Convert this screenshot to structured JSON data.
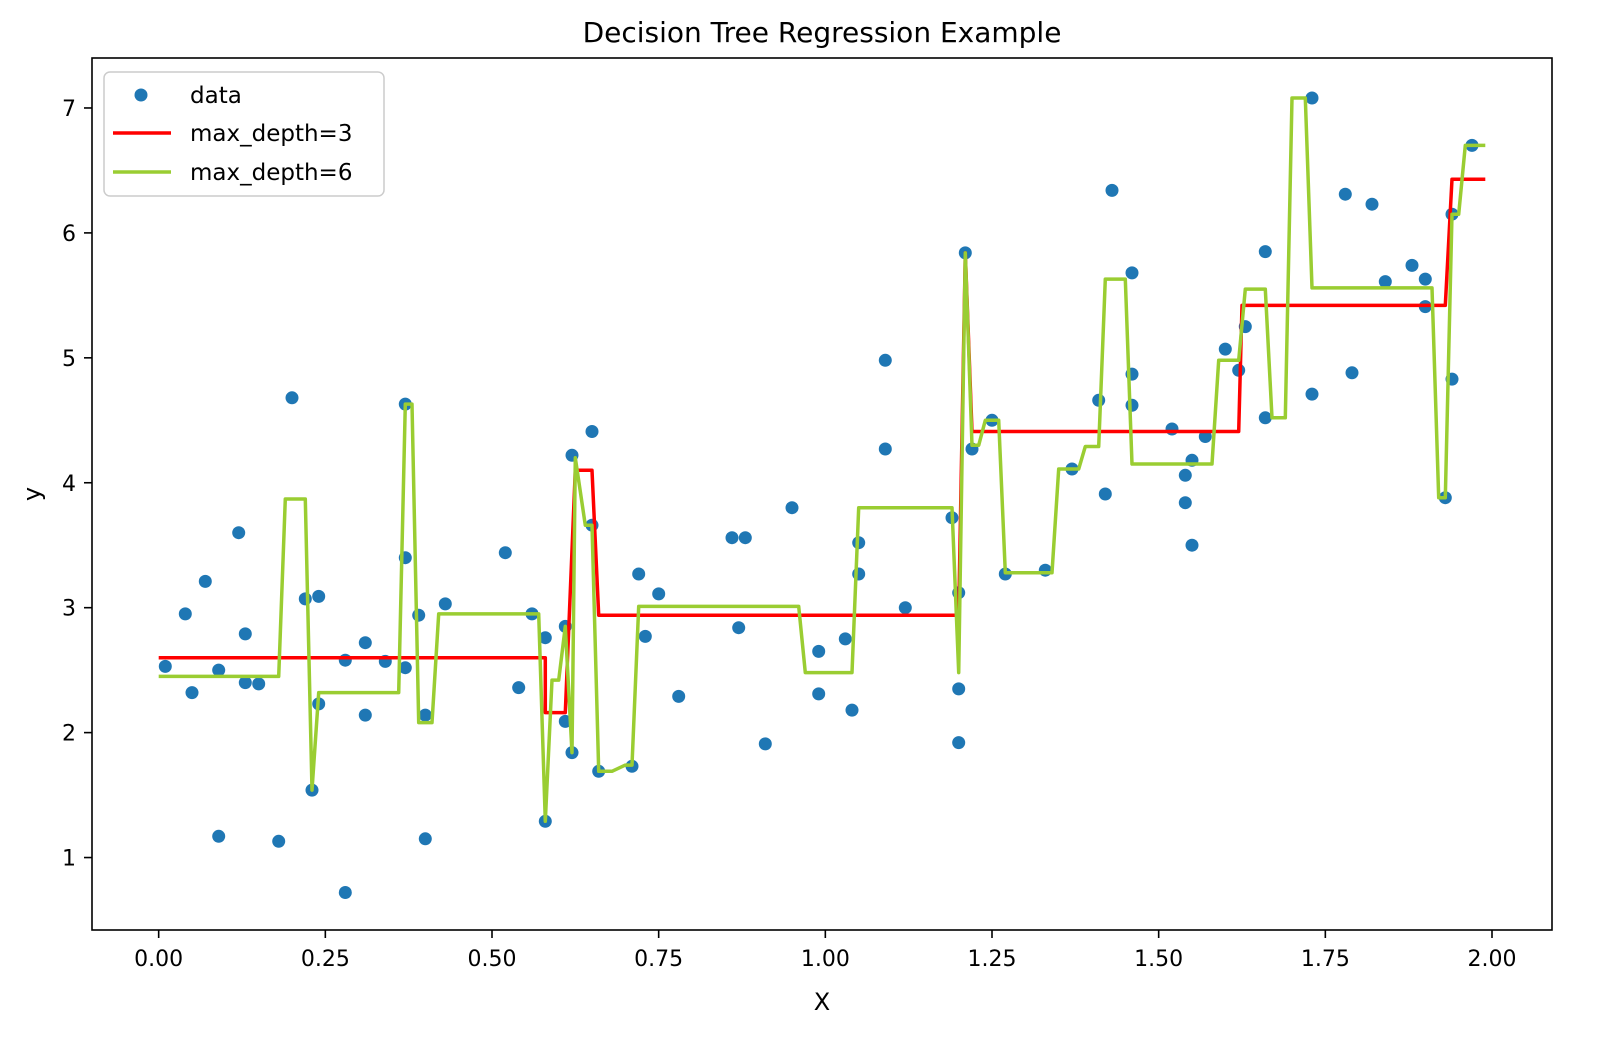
{
  "chart_data": {
    "type": "line",
    "title": "Decision Tree Regression Example",
    "xlabel": "X",
    "ylabel": "y",
    "xlim": [
      -0.1,
      2.09
    ],
    "ylim": [
      0.42,
      7.4
    ],
    "xticks": [
      0.0,
      0.25,
      0.5,
      0.75,
      1.0,
      1.25,
      1.5,
      1.75,
      2.0
    ],
    "xtick_labels": [
      "0.00",
      "0.25",
      "0.50",
      "0.75",
      "1.00",
      "1.25",
      "1.50",
      "1.75",
      "2.00"
    ],
    "yticks": [
      1,
      2,
      3,
      4,
      5,
      6,
      7
    ],
    "ytick_labels": [
      "1",
      "2",
      "3",
      "4",
      "5",
      "6",
      "7"
    ],
    "grid": false,
    "legend_position": "upper-left",
    "series": [
      {
        "name": "data",
        "kind": "scatter",
        "color": "#1f77b4",
        "points": [
          [
            0.01,
            2.53
          ],
          [
            0.04,
            2.95
          ],
          [
            0.05,
            2.32
          ],
          [
            0.07,
            3.21
          ],
          [
            0.09,
            1.17
          ],
          [
            0.09,
            2.5
          ],
          [
            0.12,
            3.6
          ],
          [
            0.13,
            2.79
          ],
          [
            0.13,
            2.4
          ],
          [
            0.15,
            2.39
          ],
          [
            0.18,
            1.13
          ],
          [
            0.2,
            4.68
          ],
          [
            0.22,
            3.07
          ],
          [
            0.23,
            1.54
          ],
          [
            0.24,
            3.09
          ],
          [
            0.24,
            2.23
          ],
          [
            0.28,
            2.58
          ],
          [
            0.28,
            0.72
          ],
          [
            0.31,
            2.72
          ],
          [
            0.31,
            2.14
          ],
          [
            0.34,
            2.57
          ],
          [
            0.37,
            2.52
          ],
          [
            0.37,
            3.4
          ],
          [
            0.37,
            4.63
          ],
          [
            0.39,
            2.94
          ],
          [
            0.4,
            1.15
          ],
          [
            0.4,
            2.14
          ],
          [
            0.43,
            3.03
          ],
          [
            0.52,
            3.44
          ],
          [
            0.54,
            2.36
          ],
          [
            0.56,
            2.95
          ],
          [
            0.58,
            1.29
          ],
          [
            0.58,
            2.76
          ],
          [
            0.61,
            2.85
          ],
          [
            0.61,
            2.09
          ],
          [
            0.62,
            1.84
          ],
          [
            0.62,
            4.22
          ],
          [
            0.65,
            3.66
          ],
          [
            0.65,
            4.41
          ],
          [
            0.66,
            1.69
          ],
          [
            0.71,
            1.73
          ],
          [
            0.72,
            3.27
          ],
          [
            0.73,
            2.77
          ],
          [
            0.75,
            3.11
          ],
          [
            0.78,
            2.29
          ],
          [
            0.86,
            3.56
          ],
          [
            0.87,
            2.84
          ],
          [
            0.88,
            3.56
          ],
          [
            0.91,
            1.91
          ],
          [
            0.95,
            3.8
          ],
          [
            0.99,
            2.65
          ],
          [
            0.99,
            2.31
          ],
          [
            1.03,
            2.75
          ],
          [
            1.04,
            2.18
          ],
          [
            1.05,
            3.52
          ],
          [
            1.05,
            3.27
          ],
          [
            1.09,
            4.98
          ],
          [
            1.09,
            4.27
          ],
          [
            1.12,
            3.0
          ],
          [
            1.19,
            3.72
          ],
          [
            1.2,
            2.35
          ],
          [
            1.2,
            1.92
          ],
          [
            1.2,
            3.12
          ],
          [
            1.21,
            5.84
          ],
          [
            1.22,
            4.27
          ],
          [
            1.25,
            4.5
          ],
          [
            1.27,
            3.27
          ],
          [
            1.33,
            3.3
          ],
          [
            1.37,
            4.11
          ],
          [
            1.41,
            4.66
          ],
          [
            1.42,
            3.91
          ],
          [
            1.43,
            6.34
          ],
          [
            1.46,
            4.87
          ],
          [
            1.46,
            5.68
          ],
          [
            1.46,
            4.62
          ],
          [
            1.52,
            4.43
          ],
          [
            1.54,
            4.06
          ],
          [
            1.54,
            3.84
          ],
          [
            1.55,
            4.18
          ],
          [
            1.55,
            3.5
          ],
          [
            1.57,
            4.37
          ],
          [
            1.6,
            5.07
          ],
          [
            1.62,
            4.9
          ],
          [
            1.63,
            5.25
          ],
          [
            1.66,
            5.85
          ],
          [
            1.66,
            4.52
          ],
          [
            1.73,
            7.08
          ],
          [
            1.73,
            4.71
          ],
          [
            1.78,
            6.31
          ],
          [
            1.79,
            4.88
          ],
          [
            1.82,
            6.23
          ],
          [
            1.84,
            5.61
          ],
          [
            1.88,
            5.74
          ],
          [
            1.9,
            5.63
          ],
          [
            1.9,
            5.41
          ],
          [
            1.93,
            3.88
          ],
          [
            1.94,
            6.15
          ],
          [
            1.94,
            4.83
          ],
          [
            1.97,
            6.7
          ]
        ]
      },
      {
        "name": "max_depth=3",
        "kind": "line",
        "color": "#ff0000",
        "points": [
          [
            0.0,
            2.6
          ],
          [
            0.58,
            2.6
          ],
          [
            0.58,
            2.16
          ],
          [
            0.61,
            2.16
          ],
          [
            0.625,
            4.1
          ],
          [
            0.65,
            4.1
          ],
          [
            0.66,
            2.94
          ],
          [
            1.19,
            2.94
          ],
          [
            1.2,
            2.94
          ],
          [
            1.21,
            5.84
          ],
          [
            1.22,
            4.41
          ],
          [
            1.62,
            4.41
          ],
          [
            1.625,
            5.42
          ],
          [
            1.93,
            5.42
          ],
          [
            1.94,
            6.43
          ],
          [
            1.99,
            6.43
          ]
        ]
      },
      {
        "name": "max_depth=6",
        "kind": "line",
        "color": "#9acd32",
        "points": [
          [
            0.0,
            2.45
          ],
          [
            0.18,
            2.45
          ],
          [
            0.19,
            3.87
          ],
          [
            0.22,
            3.87
          ],
          [
            0.23,
            1.54
          ],
          [
            0.24,
            2.32
          ],
          [
            0.36,
            2.32
          ],
          [
            0.37,
            4.63
          ],
          [
            0.38,
            4.63
          ],
          [
            0.39,
            2.08
          ],
          [
            0.41,
            2.08
          ],
          [
            0.42,
            2.95
          ],
          [
            0.56,
            2.95
          ],
          [
            0.57,
            2.95
          ],
          [
            0.58,
            1.29
          ],
          [
            0.59,
            2.42
          ],
          [
            0.6,
            2.42
          ],
          [
            0.61,
            2.85
          ],
          [
            0.62,
            1.84
          ],
          [
            0.625,
            4.2
          ],
          [
            0.64,
            3.66
          ],
          [
            0.65,
            3.66
          ],
          [
            0.66,
            1.69
          ],
          [
            0.68,
            1.69
          ],
          [
            0.7,
            1.74
          ],
          [
            0.71,
            1.74
          ],
          [
            0.72,
            3.01
          ],
          [
            0.96,
            3.01
          ],
          [
            0.97,
            2.48
          ],
          [
            1.04,
            2.48
          ],
          [
            1.05,
            3.8
          ],
          [
            1.19,
            3.8
          ],
          [
            1.2,
            2.48
          ],
          [
            1.21,
            5.84
          ],
          [
            1.22,
            4.3
          ],
          [
            1.23,
            4.3
          ],
          [
            1.24,
            4.5
          ],
          [
            1.26,
            4.5
          ],
          [
            1.27,
            3.28
          ],
          [
            1.34,
            3.28
          ],
          [
            1.35,
            4.11
          ],
          [
            1.38,
            4.11
          ],
          [
            1.39,
            4.29
          ],
          [
            1.41,
            4.29
          ],
          [
            1.42,
            5.63
          ],
          [
            1.45,
            5.63
          ],
          [
            1.46,
            4.15
          ],
          [
            1.58,
            4.15
          ],
          [
            1.59,
            4.98
          ],
          [
            1.62,
            4.98
          ],
          [
            1.63,
            5.55
          ],
          [
            1.66,
            5.55
          ],
          [
            1.67,
            4.52
          ],
          [
            1.69,
            4.52
          ],
          [
            1.7,
            7.08
          ],
          [
            1.72,
            7.08
          ],
          [
            1.73,
            5.56
          ],
          [
            1.9,
            5.56
          ],
          [
            1.91,
            5.56
          ],
          [
            1.92,
            3.88
          ],
          [
            1.93,
            3.88
          ],
          [
            1.94,
            6.15
          ],
          [
            1.95,
            6.15
          ],
          [
            1.96,
            6.7
          ],
          [
            1.99,
            6.7
          ]
        ]
      }
    ]
  }
}
